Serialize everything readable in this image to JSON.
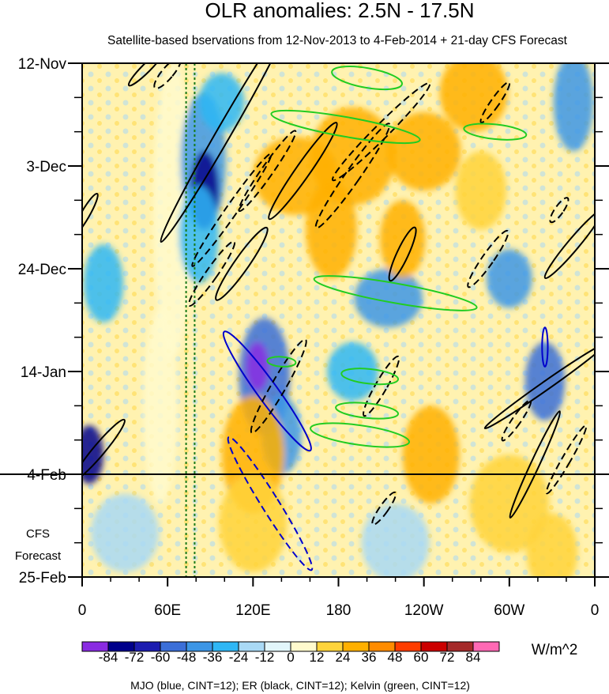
{
  "chart_data": {
    "type": "heatmap",
    "title": "OLR anomalies: 2.5N - 17.5N",
    "subtitle": "Satellite-based bservations from 12-Nov-2013 to 4-Feb-2014 + 21-day CFS Forecast",
    "x_ticks": [
      {
        "lon": 0,
        "label": "0"
      },
      {
        "lon": 60,
        "label": "60E"
      },
      {
        "lon": 120,
        "label": "120E"
      },
      {
        "lon": 180,
        "label": "180"
      },
      {
        "lon": 240,
        "label": "120W"
      },
      {
        "lon": 300,
        "label": "60W"
      },
      {
        "lon": 360,
        "label": "0"
      }
    ],
    "xlim": [
      0,
      360
    ],
    "y_ticks": [
      {
        "day": 0,
        "label": "12-Nov"
      },
      {
        "day": 21,
        "label": "3-Dec"
      },
      {
        "day": 42,
        "label": "24-Dec"
      },
      {
        "day": 63,
        "label": "14-Jan"
      },
      {
        "day": 84,
        "label": "4-Feb"
      },
      {
        "day": 105,
        "label": "25-Feb"
      }
    ],
    "ylim_days": [
      0,
      105
    ],
    "forecast_start_day": 84,
    "forecast_label_line1": "CFS",
    "forecast_label_line2": "Forecast",
    "colorbar": {
      "unit": "W/m^2",
      "levels": [
        "-84",
        "-72",
        "-60",
        "-48",
        "-36",
        "-24",
        "-12",
        "0",
        "12",
        "24",
        "36",
        "48",
        "60",
        "72",
        "84"
      ],
      "colors": [
        "#8a2be2",
        "#00008b",
        "#1c1cb0",
        "#3b6fd8",
        "#3c96e6",
        "#2fb7f5",
        "#a9d9f5",
        "#e2f6fb",
        "#fffacd",
        "#ffd43b",
        "#ffb000",
        "#ff8c00",
        "#ff3d00",
        "#cc0000",
        "#a52a2a",
        "#ff69b4"
      ]
    },
    "footer": "MJO (blue, CINT=12); ER (black, CINT=12); Kelvin (green, CINT=12)",
    "anomaly_features": [
      {
        "lon": 64,
        "day": 30,
        "rx": 14,
        "rd": 30,
        "v": 10
      },
      {
        "lon": 55,
        "day": 70,
        "rx": 12,
        "rd": 20,
        "v": 8
      },
      {
        "lon": 85,
        "day": 20,
        "rx": 16,
        "rd": 14,
        "v": -40
      },
      {
        "lon": 86,
        "day": 26,
        "rx": 10,
        "rd": 8,
        "v": -72
      },
      {
        "lon": 82,
        "day": 35,
        "rx": 14,
        "rd": 10,
        "v": -30
      },
      {
        "lon": 98,
        "day": 8,
        "rx": 16,
        "rd": 6,
        "v": -28
      },
      {
        "lon": 128,
        "day": 64,
        "rx": 18,
        "rd": 12,
        "v": -48
      },
      {
        "lon": 123,
        "day": 62,
        "rx": 8,
        "rd": 5,
        "v": -84
      },
      {
        "lon": 140,
        "day": 76,
        "rx": 14,
        "rd": 8,
        "v": -40
      },
      {
        "lon": 150,
        "day": 23,
        "rx": 30,
        "rd": 8,
        "v": 30
      },
      {
        "lon": 190,
        "day": 19,
        "rx": 30,
        "rd": 10,
        "v": 32
      },
      {
        "lon": 240,
        "day": 18,
        "rx": 26,
        "rd": 8,
        "v": 26
      },
      {
        "lon": 275,
        "day": 6,
        "rx": 24,
        "rd": 8,
        "v": 30
      },
      {
        "lon": 175,
        "day": 34,
        "rx": 18,
        "rd": 10,
        "v": 28
      },
      {
        "lon": 120,
        "day": 80,
        "rx": 22,
        "rd": 12,
        "v": 30
      },
      {
        "lon": 120,
        "day": 94,
        "rx": 24,
        "rd": 10,
        "v": 20
      },
      {
        "lon": 215,
        "day": 48,
        "rx": 24,
        "rd": 6,
        "v": -36
      },
      {
        "lon": 300,
        "day": 44,
        "rx": 16,
        "rd": 6,
        "v": -40
      },
      {
        "lon": 325,
        "day": 65,
        "rx": 14,
        "rd": 8,
        "v": -48
      },
      {
        "lon": 345,
        "day": 8,
        "rx": 14,
        "rd": 10,
        "v": -40
      },
      {
        "lon": 5,
        "day": 80,
        "rx": 10,
        "rd": 6,
        "v": -72
      },
      {
        "lon": 15,
        "day": 45,
        "rx": 14,
        "rd": 8,
        "v": -30
      },
      {
        "lon": 300,
        "day": 90,
        "rx": 28,
        "rd": 10,
        "v": 20
      },
      {
        "lon": 245,
        "day": 80,
        "rx": 20,
        "rd": 10,
        "v": 28
      },
      {
        "lon": 330,
        "day": 100,
        "rx": 18,
        "rd": 8,
        "v": 22
      },
      {
        "lon": 220,
        "day": 98,
        "rx": 24,
        "rd": 8,
        "v": -12
      },
      {
        "lon": 30,
        "day": 96,
        "rx": 24,
        "rd": 8,
        "v": -14
      },
      {
        "lon": 190,
        "day": 63,
        "rx": 18,
        "rd": 6,
        "v": -24
      },
      {
        "lon": 225,
        "day": 36,
        "rx": 16,
        "rd": 8,
        "v": 30
      },
      {
        "lon": 280,
        "day": 26,
        "rx": 18,
        "rd": 8,
        "v": 22
      }
    ],
    "contours": [
      {
        "name": "MJO",
        "color": "#0000cc",
        "dashed": false,
        "lon": 130,
        "day": 67,
        "rx": 7,
        "rd": 15,
        "rot": -36
      },
      {
        "name": "MJO",
        "color": "#0000cc",
        "dashed": true,
        "lon": 132,
        "day": 90,
        "rx": 6,
        "rd": 16,
        "rot": -32
      },
      {
        "name": "MJO",
        "color": "#0000cc",
        "dashed": false,
        "lon": 325,
        "day": 58,
        "rx": 2,
        "rd": 4,
        "rot": 0
      },
      {
        "name": "ER",
        "color": "#000000",
        "dashed": false,
        "lon": 100,
        "day": 14,
        "rx": 5,
        "rd": 26,
        "rot": 30
      },
      {
        "name": "ER",
        "color": "#000000",
        "dashed": true,
        "lon": 105,
        "day": 30,
        "rx": 4,
        "rd": 14,
        "rot": 35
      },
      {
        "name": "ER",
        "color": "#000000",
        "dashed": true,
        "lon": 130,
        "day": 22,
        "rx": 4,
        "rd": 10,
        "rot": 35
      },
      {
        "name": "ER",
        "color": "#000000",
        "dashed": false,
        "lon": 155,
        "day": 22,
        "rx": 5,
        "rd": 12,
        "rot": 35
      },
      {
        "name": "ER",
        "color": "#000000",
        "dashed": true,
        "lon": 190,
        "day": 23,
        "rx": 5,
        "rd": 13,
        "rot": 35
      },
      {
        "name": "ER",
        "color": "#000000",
        "dashed": true,
        "lon": 210,
        "day": 14,
        "rx": 5,
        "rd": 14,
        "rot": 45
      },
      {
        "name": "ER",
        "color": "#000000",
        "dashed": false,
        "lon": 112,
        "day": 41,
        "rx": 5,
        "rd": 9,
        "rot": 35
      },
      {
        "name": "ER",
        "color": "#000000",
        "dashed": true,
        "lon": 91,
        "day": 43,
        "rx": 4,
        "rd": 8,
        "rot": 35
      },
      {
        "name": "ER",
        "color": "#000000",
        "dashed": false,
        "lon": 225,
        "day": 39,
        "rx": 4,
        "rd": 6,
        "rot": 25
      },
      {
        "name": "ER",
        "color": "#000000",
        "dashed": true,
        "lon": 285,
        "day": 40,
        "rx": 4,
        "rd": 7,
        "rot": 35
      },
      {
        "name": "ER",
        "color": "#000000",
        "dashed": false,
        "lon": 345,
        "day": 37,
        "rx": 4,
        "rd": 9,
        "rot": 40
      },
      {
        "name": "ER",
        "color": "#000000",
        "dashed": true,
        "lon": 335,
        "day": 30,
        "rx": 3,
        "rd": 3,
        "rot": 35
      },
      {
        "name": "ER",
        "color": "#000000",
        "dashed": false,
        "lon": 325,
        "day": 66,
        "rx": 3,
        "rd": 15,
        "rot": 55
      },
      {
        "name": "ER",
        "color": "#000000",
        "dashed": true,
        "lon": 138,
        "day": 66,
        "rx": 5,
        "rd": 11,
        "rot": 30
      },
      {
        "name": "ER",
        "color": "#000000",
        "dashed": true,
        "lon": 210,
        "day": 66,
        "rx": 4,
        "rd": 7,
        "rot": 30
      },
      {
        "name": "ER",
        "color": "#000000",
        "dashed": true,
        "lon": 305,
        "day": 73,
        "rx": 3,
        "rd": 5,
        "rot": 35
      },
      {
        "name": "ER",
        "color": "#000000",
        "dashed": false,
        "lon": 318,
        "day": 82,
        "rx": 3,
        "rd": 12,
        "rot": 25
      },
      {
        "name": "ER",
        "color": "#000000",
        "dashed": true,
        "lon": 340,
        "day": 81,
        "rx": 3,
        "rd": 8,
        "rot": 30
      },
      {
        "name": "ER",
        "color": "#000000",
        "dashed": false,
        "lon": 12,
        "day": 79,
        "rx": 4,
        "rd": 8,
        "rot": 40
      },
      {
        "name": "ER",
        "color": "#000000",
        "dashed": true,
        "lon": 212,
        "day": 91,
        "rx": 3,
        "rd": 4,
        "rot": 35
      },
      {
        "name": "ER",
        "color": "#000000",
        "dashed": false,
        "lon": 2,
        "day": 31,
        "rx": 3,
        "rd": 5,
        "rot": 30
      },
      {
        "name": "ER",
        "color": "#000000",
        "dashed": true,
        "lon": 60,
        "day": 2,
        "rx": 4,
        "rd": 4,
        "rot": 40
      },
      {
        "name": "ER",
        "color": "#000000",
        "dashed": false,
        "lon": 45,
        "day": 1,
        "rx": 3,
        "rd": 5,
        "rot": 45
      },
      {
        "name": "ER",
        "color": "#000000",
        "dashed": true,
        "lon": 290,
        "day": 8,
        "rx": 3,
        "rd": 5,
        "rot": 35
      },
      {
        "name": "Kelvin",
        "color": "#22cc22",
        "dashed": false,
        "lon": 185,
        "day": 13,
        "rx": 53,
        "rd": 2,
        "rot": 0,
        "tilt": 10
      },
      {
        "name": "Kelvin",
        "color": "#22cc22",
        "dashed": false,
        "lon": 220,
        "day": 47,
        "rx": 58,
        "rd": 2,
        "rot": 0,
        "tilt": 10
      },
      {
        "name": "Kelvin",
        "color": "#22cc22",
        "dashed": false,
        "lon": 200,
        "day": 3,
        "rx": 25,
        "rd": 2,
        "rot": 0,
        "tilt": 10
      },
      {
        "name": "Kelvin",
        "color": "#22cc22",
        "dashed": false,
        "lon": 195,
        "day": 76,
        "rx": 35,
        "rd": 2,
        "rot": 0,
        "tilt": 8
      },
      {
        "name": "Kelvin",
        "color": "#22cc22",
        "dashed": false,
        "lon": 202,
        "day": 64,
        "rx": 20,
        "rd": 1.5,
        "rot": 0,
        "tilt": 6
      },
      {
        "name": "Kelvin",
        "color": "#22cc22",
        "dashed": false,
        "lon": 290,
        "day": 14,
        "rx": 22,
        "rd": 1.5,
        "rot": 0,
        "tilt": 6
      },
      {
        "name": "Kelvin",
        "color": "#22cc22",
        "dashed": false,
        "lon": 200,
        "day": 71,
        "rx": 22,
        "rd": 1.5,
        "rot": 0,
        "tilt": 6
      },
      {
        "name": "Kelvin",
        "color": "#22cc22",
        "dashed": false,
        "lon": 140,
        "day": 61,
        "rx": 10,
        "rd": 1,
        "rot": 0,
        "tilt": 4
      }
    ],
    "green_dotted_lons": [
      73,
      79
    ]
  }
}
